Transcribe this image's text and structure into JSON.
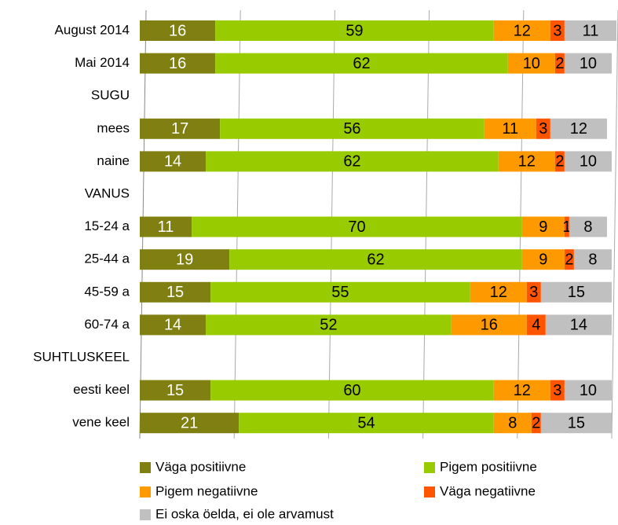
{
  "chart_data": {
    "type": "stacked_bar_horizontal",
    "categories": [
      "August 2014",
      "Mai 2014",
      "SUGU",
      "mees",
      "naine",
      "VANUS",
      "15-24 a",
      "25-44 a",
      "45-59 a",
      "60-74 a",
      "SUHTLUSKEEL",
      "eesti keel",
      "vene keel"
    ],
    "series": [
      {
        "name": "Väga positiivne",
        "color": "#7f7f12",
        "values": [
          16,
          16,
          null,
          17,
          14,
          null,
          11,
          19,
          15,
          14,
          null,
          15,
          21
        ]
      },
      {
        "name": "Pigem positiivne",
        "color": "#99cc00",
        "values": [
          59,
          62,
          null,
          56,
          62,
          null,
          70,
          62,
          55,
          52,
          null,
          60,
          54
        ]
      },
      {
        "name": "Pigem negatiivne",
        "color": "#ff9900",
        "values": [
          12,
          10,
          null,
          11,
          12,
          null,
          9,
          9,
          12,
          16,
          null,
          12,
          8
        ]
      },
      {
        "name": "Väga negatiivne",
        "color": "#ff5500",
        "values": [
          3,
          2,
          null,
          3,
          2,
          null,
          1,
          2,
          3,
          4,
          null,
          3,
          2
        ]
      },
      {
        "name": "Ei oska öelda, ei ole arvamust",
        "color": "#c0c0c0",
        "values": [
          11,
          10,
          null,
          12,
          10,
          null,
          8,
          8,
          15,
          14,
          null,
          10,
          15
        ]
      }
    ],
    "xlim": [
      0,
      101
    ],
    "xticks": [
      0,
      20,
      40,
      60,
      80,
      100
    ],
    "grid": true
  }
}
